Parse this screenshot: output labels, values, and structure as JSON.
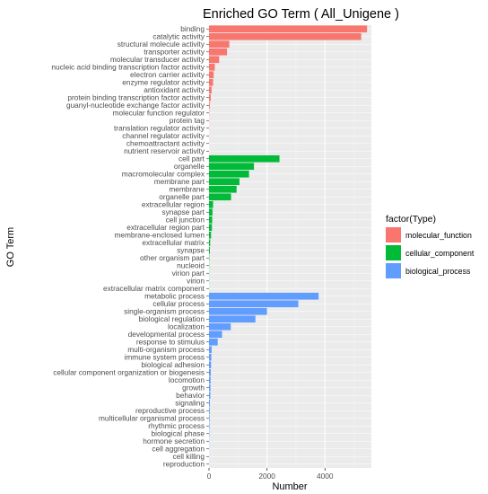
{
  "chart_data": {
    "type": "bar",
    "orientation": "horizontal",
    "title": "Enriched GO Term ( All_Unigene )",
    "xlabel": "Number",
    "ylabel": "GO Term",
    "xlim": [
      0,
      5600
    ],
    "x_ticks": [
      0,
      2000,
      4000
    ],
    "grid": true,
    "legend_title": "factor(Type)",
    "legend_position": "right",
    "series": [
      {
        "name": "molecular_function",
        "color": "#F8766D"
      },
      {
        "name": "cellular_component",
        "color": "#00BA38"
      },
      {
        "name": "biological_process",
        "color": "#619CFF"
      }
    ],
    "bars": [
      {
        "category": "binding",
        "value": 5450,
        "series": "molecular_function"
      },
      {
        "category": "catalytic activity",
        "value": 5250,
        "series": "molecular_function"
      },
      {
        "category": "structural molecule activity",
        "value": 700,
        "series": "molecular_function"
      },
      {
        "category": "transporter activity",
        "value": 620,
        "series": "molecular_function"
      },
      {
        "category": "molecular transducer activity",
        "value": 350,
        "series": "molecular_function"
      },
      {
        "category": "nucleic acid binding transcription factor activity",
        "value": 200,
        "series": "molecular_function"
      },
      {
        "category": "electron carrier activity",
        "value": 160,
        "series": "molecular_function"
      },
      {
        "category": "enzyme regulator activity",
        "value": 140,
        "series": "molecular_function"
      },
      {
        "category": "antioxidant activity",
        "value": 90,
        "series": "molecular_function"
      },
      {
        "category": "protein binding transcription factor activity",
        "value": 60,
        "series": "molecular_function"
      },
      {
        "category": "guanyl-nucleotide exchange factor activity",
        "value": 25,
        "series": "molecular_function"
      },
      {
        "category": "molecular function regulator",
        "value": 8,
        "series": "molecular_function"
      },
      {
        "category": "protein tag",
        "value": 5,
        "series": "molecular_function"
      },
      {
        "category": "translation regulator activity",
        "value": 4,
        "series": "molecular_function"
      },
      {
        "category": "channel regulator activity",
        "value": 3,
        "series": "molecular_function"
      },
      {
        "category": "chemoattractant activity",
        "value": 2,
        "series": "molecular_function"
      },
      {
        "category": "nutrient reservoir activity",
        "value": 2,
        "series": "molecular_function"
      },
      {
        "category": "cell part",
        "value": 2430,
        "series": "cellular_component"
      },
      {
        "category": "organelle",
        "value": 1550,
        "series": "cellular_component"
      },
      {
        "category": "macromolecular complex",
        "value": 1380,
        "series": "cellular_component"
      },
      {
        "category": "membrane part",
        "value": 1050,
        "series": "cellular_component"
      },
      {
        "category": "membrane",
        "value": 950,
        "series": "cellular_component"
      },
      {
        "category": "organelle part",
        "value": 760,
        "series": "cellular_component"
      },
      {
        "category": "extracellular region",
        "value": 140,
        "series": "cellular_component"
      },
      {
        "category": "synapse part",
        "value": 120,
        "series": "cellular_component"
      },
      {
        "category": "cell junction",
        "value": 110,
        "series": "cellular_component"
      },
      {
        "category": "extracellular region part",
        "value": 100,
        "series": "cellular_component"
      },
      {
        "category": "membrane-enclosed lumen",
        "value": 70,
        "series": "cellular_component"
      },
      {
        "category": "extracellular matrix",
        "value": 40,
        "series": "cellular_component"
      },
      {
        "category": "synapse",
        "value": 30,
        "series": "cellular_component"
      },
      {
        "category": "other organism part",
        "value": 10,
        "series": "cellular_component"
      },
      {
        "category": "nucleoid",
        "value": 6,
        "series": "cellular_component"
      },
      {
        "category": "virion part",
        "value": 4,
        "series": "cellular_component"
      },
      {
        "category": "virion",
        "value": 4,
        "series": "cellular_component"
      },
      {
        "category": "extracellular matrix component",
        "value": 3,
        "series": "cellular_component"
      },
      {
        "category": "metabolic process",
        "value": 3780,
        "series": "biological_process"
      },
      {
        "category": "cellular process",
        "value": 3080,
        "series": "biological_process"
      },
      {
        "category": "single-organism process",
        "value": 2000,
        "series": "biological_process"
      },
      {
        "category": "biological regulation",
        "value": 1600,
        "series": "biological_process"
      },
      {
        "category": "localization",
        "value": 750,
        "series": "biological_process"
      },
      {
        "category": "developmental process",
        "value": 450,
        "series": "biological_process"
      },
      {
        "category": "response to stimulus",
        "value": 300,
        "series": "biological_process"
      },
      {
        "category": "multi-organism process",
        "value": 90,
        "series": "biological_process"
      },
      {
        "category": "immune system process",
        "value": 80,
        "series": "biological_process"
      },
      {
        "category": "biological adhesion",
        "value": 70,
        "series": "biological_process"
      },
      {
        "category": "cellular component organization or biogenesis",
        "value": 60,
        "series": "biological_process"
      },
      {
        "category": "locomotion",
        "value": 55,
        "series": "biological_process"
      },
      {
        "category": "growth",
        "value": 50,
        "series": "biological_process"
      },
      {
        "category": "behavior",
        "value": 45,
        "series": "biological_process"
      },
      {
        "category": "signaling",
        "value": 30,
        "series": "biological_process"
      },
      {
        "category": "reproductive process",
        "value": 25,
        "series": "biological_process"
      },
      {
        "category": "multicellular organismal process",
        "value": 20,
        "series": "biological_process"
      },
      {
        "category": "rhythmic process",
        "value": 15,
        "series": "biological_process"
      },
      {
        "category": "biological phase",
        "value": 10,
        "series": "biological_process"
      },
      {
        "category": "hormone secretion",
        "value": 5,
        "series": "biological_process"
      },
      {
        "category": "cell aggregation",
        "value": 4,
        "series": "biological_process"
      },
      {
        "category": "cell killing",
        "value": 3,
        "series": "biological_process"
      },
      {
        "category": "reproduction",
        "value": 3,
        "series": "biological_process"
      }
    ]
  }
}
